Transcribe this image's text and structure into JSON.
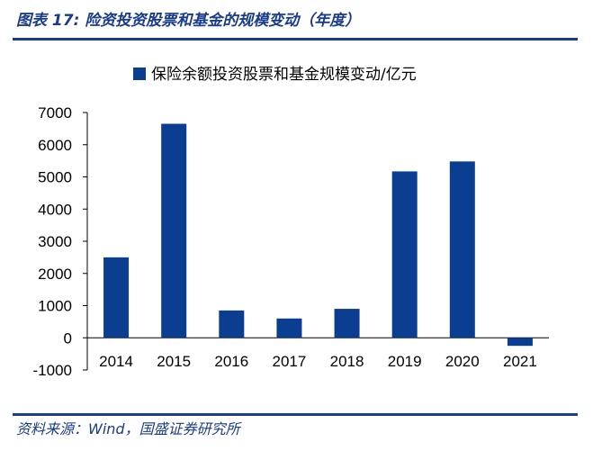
{
  "header": {
    "figure_title": "图表 17:  险资投资股票和基金的规模变动（年度）"
  },
  "footer": {
    "source": "资料来源：Wind，国盛证券研究所"
  },
  "colors": {
    "bar": "#0b3d91",
    "title": "#1a3c8c"
  },
  "chart_data": {
    "type": "bar",
    "categories": [
      "2014",
      "2015",
      "2016",
      "2017",
      "2018",
      "2019",
      "2020",
      "2021"
    ],
    "series": [
      {
        "name": "保险余额投资股票和基金规模变动/亿元",
        "values": [
          2500,
          6650,
          850,
          600,
          900,
          5170,
          5480,
          -250
        ]
      }
    ],
    "ylim": [
      -1000,
      7000
    ],
    "yticks": [
      -1000,
      0,
      1000,
      2000,
      3000,
      4000,
      5000,
      6000,
      7000
    ],
    "legend_position": "top",
    "grid": false
  }
}
